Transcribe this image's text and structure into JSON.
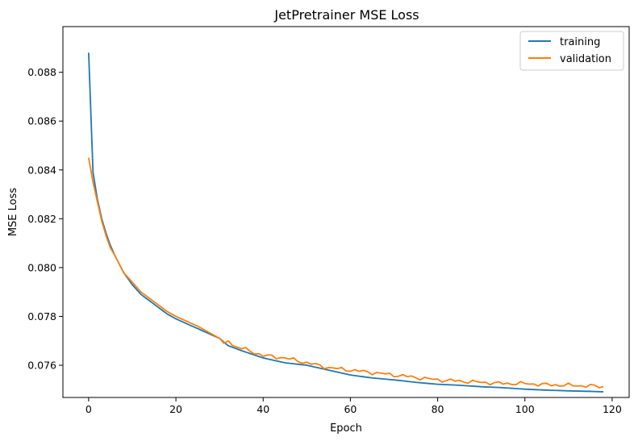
{
  "chart_data": {
    "type": "line",
    "title": "JetPretrainer MSE Loss",
    "xlabel": "Epoch",
    "ylabel": "MSE Loss",
    "xlim": [
      -5.9,
      123.9
    ],
    "ylim": [
      0.07468,
      0.08987
    ],
    "xticks": [
      0,
      20,
      40,
      60,
      80,
      100,
      120
    ],
    "yticks": [
      0.076,
      0.078,
      0.08,
      0.082,
      0.084,
      0.086,
      0.088
    ],
    "legend_position": "top-right",
    "grid": false,
    "series": [
      {
        "name": "training",
        "color": "#1f77b4",
        "anchors": [
          [
            0,
            0.0888
          ],
          [
            1,
            0.0839
          ],
          [
            2,
            0.0828
          ],
          [
            3,
            0.082
          ],
          [
            4,
            0.0814
          ],
          [
            5,
            0.0809
          ],
          [
            6,
            0.0805
          ],
          [
            8,
            0.0798
          ],
          [
            10,
            0.0793
          ],
          [
            12,
            0.0789
          ],
          [
            15,
            0.0785
          ],
          [
            18,
            0.0781
          ],
          [
            20,
            0.0779
          ],
          [
            25,
            0.0775
          ],
          [
            30,
            0.0771
          ],
          [
            32,
            0.0768
          ],
          [
            35,
            0.0766
          ],
          [
            40,
            0.0763
          ],
          [
            45,
            0.0761
          ],
          [
            50,
            0.076
          ],
          [
            55,
            0.0758
          ],
          [
            60,
            0.0756
          ],
          [
            65,
            0.07548
          ],
          [
            70,
            0.0754
          ],
          [
            75,
            0.0753
          ],
          [
            80,
            0.07522
          ],
          [
            85,
            0.07518
          ],
          [
            90,
            0.07512
          ],
          [
            95,
            0.07508
          ],
          [
            100,
            0.07502
          ],
          [
            105,
            0.07498
          ],
          [
            110,
            0.07495
          ],
          [
            115,
            0.07493
          ],
          [
            118,
            0.07491
          ]
        ]
      },
      {
        "name": "validation",
        "color": "#ff7f0e",
        "anchors": [
          [
            0,
            0.0845
          ],
          [
            1,
            0.0835
          ],
          [
            2,
            0.0827
          ],
          [
            3,
            0.0819
          ],
          [
            4,
            0.0813
          ],
          [
            5,
            0.0808
          ],
          [
            6,
            0.0805
          ],
          [
            8,
            0.0798
          ],
          [
            10,
            0.0794
          ],
          [
            12,
            0.079
          ],
          [
            15,
            0.0786
          ],
          [
            18,
            0.0782
          ],
          [
            20,
            0.078
          ],
          [
            25,
            0.0776
          ],
          [
            30,
            0.0771
          ],
          [
            31,
            0.0769
          ],
          [
            32,
            0.077
          ],
          [
            33,
            0.0768
          ],
          [
            35,
            0.0767
          ],
          [
            40,
            0.0764
          ],
          [
            45,
            0.0763
          ],
          [
            50,
            0.0761
          ],
          [
            55,
            0.0759
          ],
          [
            60,
            0.0758
          ],
          [
            65,
            0.0757
          ],
          [
            70,
            0.0756
          ],
          [
            75,
            0.0755
          ],
          [
            80,
            0.0754
          ],
          [
            85,
            0.07535
          ],
          [
            90,
            0.0753
          ],
          [
            95,
            0.07525
          ],
          [
            100,
            0.07525
          ],
          [
            105,
            0.0752
          ],
          [
            110,
            0.07518
          ],
          [
            115,
            0.07515
          ],
          [
            118,
            0.07512
          ]
        ]
      }
    ]
  }
}
